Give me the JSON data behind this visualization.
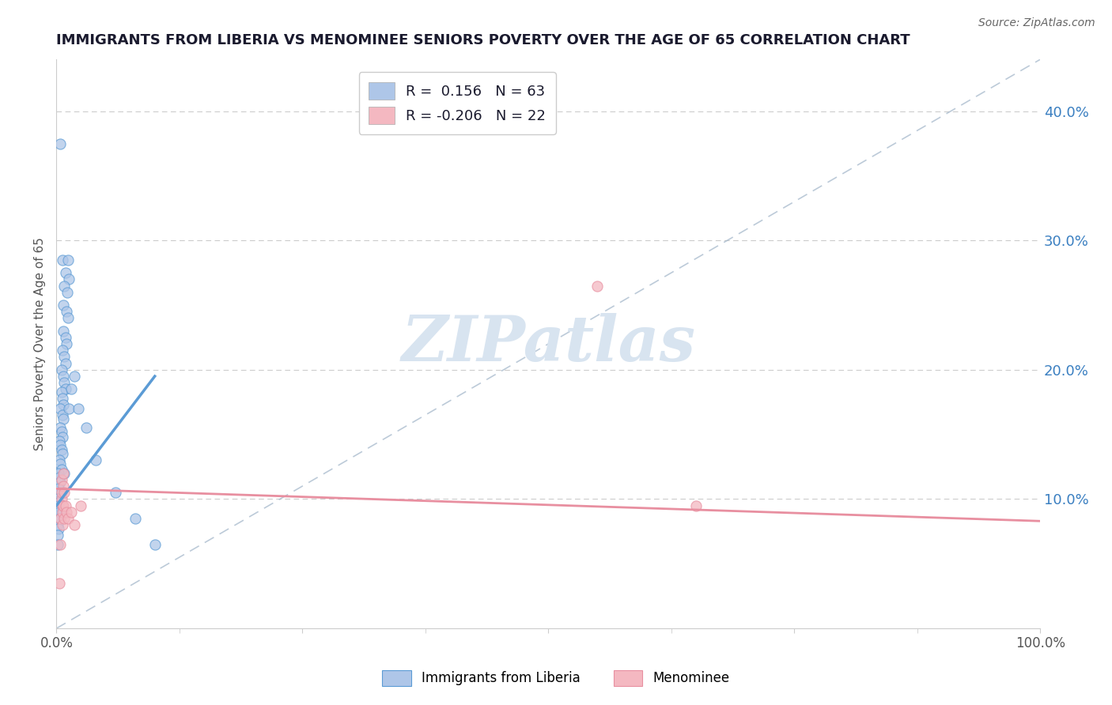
{
  "title": "IMMIGRANTS FROM LIBERIA VS MENOMINEE SENIORS POVERTY OVER THE AGE OF 65 CORRELATION CHART",
  "source": "Source: ZipAtlas.com",
  "ylabel": "Seniors Poverty Over the Age of 65",
  "xlim": [
    0,
    1.0
  ],
  "ylim": [
    0,
    0.44
  ],
  "yticks": [
    0.0,
    0.1,
    0.2,
    0.3,
    0.4
  ],
  "yticklabels_right": [
    "",
    "10.0%",
    "20.0%",
    "30.0%",
    "40.0%"
  ],
  "legend_entries": [
    {
      "label_r": "R = ",
      "label_val": " 0.156",
      "label_n": "   N = ",
      "label_nval": "63",
      "color": "#aec6e8"
    },
    {
      "label_r": "R = ",
      "label_val": "-0.206",
      "label_n": "   N = ",
      "label_nval": "22",
      "color": "#f4b8c1"
    }
  ],
  "watermark": "ZIPatlas",
  "blue_scatter_x": [
    0.004,
    0.006,
    0.012,
    0.009,
    0.013,
    0.008,
    0.011,
    0.007,
    0.01,
    0.012,
    0.007,
    0.009,
    0.01,
    0.006,
    0.008,
    0.009,
    0.005,
    0.007,
    0.008,
    0.009,
    0.005,
    0.006,
    0.007,
    0.004,
    0.006,
    0.007,
    0.004,
    0.005,
    0.006,
    0.003,
    0.004,
    0.005,
    0.006,
    0.003,
    0.004,
    0.005,
    0.002,
    0.003,
    0.004,
    0.002,
    0.003,
    0.001,
    0.002,
    0.003,
    0.001,
    0.002,
    0.001,
    0.002,
    0.001,
    0.001,
    0.008,
    0.013,
    0.015,
    0.018,
    0.022,
    0.03,
    0.04,
    0.06,
    0.08,
    0.1,
    0.002,
    0.003,
    0.004
  ],
  "blue_scatter_y": [
    0.375,
    0.285,
    0.285,
    0.275,
    0.27,
    0.265,
    0.26,
    0.25,
    0.245,
    0.24,
    0.23,
    0.225,
    0.22,
    0.215,
    0.21,
    0.205,
    0.2,
    0.195,
    0.19,
    0.185,
    0.183,
    0.178,
    0.173,
    0.17,
    0.165,
    0.162,
    0.155,
    0.152,
    0.148,
    0.145,
    0.142,
    0.138,
    0.135,
    0.13,
    0.127,
    0.123,
    0.12,
    0.117,
    0.113,
    0.108,
    0.105,
    0.1,
    0.097,
    0.093,
    0.088,
    0.085,
    0.08,
    0.077,
    0.072,
    0.065,
    0.12,
    0.17,
    0.185,
    0.195,
    0.17,
    0.155,
    0.13,
    0.105,
    0.085,
    0.065,
    0.095,
    0.09,
    0.085
  ],
  "pink_scatter_x": [
    0.003,
    0.004,
    0.005,
    0.004,
    0.005,
    0.006,
    0.005,
    0.006,
    0.007,
    0.006,
    0.007,
    0.007,
    0.008,
    0.008,
    0.009,
    0.01,
    0.012,
    0.015,
    0.018,
    0.025,
    0.55,
    0.65
  ],
  "pink_scatter_y": [
    0.035,
    0.065,
    0.1,
    0.085,
    0.115,
    0.095,
    0.105,
    0.09,
    0.12,
    0.08,
    0.11,
    0.095,
    0.105,
    0.085,
    0.095,
    0.09,
    0.085,
    0.09,
    0.08,
    0.095,
    0.265,
    0.095
  ],
  "blue_line_x": [
    0.0,
    0.1
  ],
  "blue_line_y": [
    0.095,
    0.195
  ],
  "pink_line_x": [
    0.0,
    1.0
  ],
  "pink_line_y": [
    0.108,
    0.083
  ],
  "diag_line_x": [
    0.0,
    1.0
  ],
  "diag_line_y": [
    0.0,
    0.44
  ],
  "title_color": "#1a1a2e",
  "blue_color": "#5b9bd5",
  "blue_fill": "#aec6e8",
  "pink_color": "#e88fa0",
  "pink_fill": "#f4b8c1",
  "axis_color": "#555555",
  "grid_color": "#cccccc",
  "watermark_color": "#d8e4f0",
  "diag_color": "#a0b4c8",
  "tick_color_right": "#3a7fc1"
}
